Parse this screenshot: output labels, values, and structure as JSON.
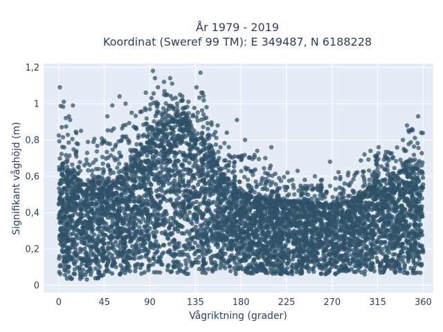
{
  "chart_data": {
    "type": "scatter",
    "title": "År 1979 - 2019",
    "subtitle": "Koordinat (Sweref 99 TM): E 349487, N 6188228",
    "xlabel": "Vågriktning (grader)",
    "ylabel": "Signifikant våghöjd (m)",
    "xlim": [
      -15,
      370
    ],
    "ylim": [
      -0.04,
      1.22
    ],
    "xticks": [
      0,
      45,
      90,
      135,
      180,
      225,
      270,
      315,
      360
    ],
    "xtick_labels": [
      "0",
      "45",
      "90",
      "135",
      "180",
      "225",
      "270",
      "315",
      "360"
    ],
    "yticks": [
      0,
      0.2,
      0.4,
      0.6,
      0.8,
      1.0,
      1.2
    ],
    "ytick_labels": [
      "0",
      "0,2",
      "0,4",
      "0,6",
      "0,8",
      "1",
      "1,2"
    ],
    "grid": true,
    "series": [
      {
        "color": "#2f5168",
        "envelope": {
          "direction": [
            0,
            10,
            20,
            30,
            45,
            60,
            75,
            90,
            100,
            110,
            120,
            130,
            140,
            150,
            160,
            170,
            180,
            195,
            210,
            225,
            240,
            255,
            270,
            285,
            300,
            315,
            330,
            340,
            350,
            360
          ],
          "lower": [
            0.04,
            0.03,
            0.03,
            0.03,
            0.04,
            0.05,
            0.06,
            0.06,
            0.06,
            0.06,
            0.06,
            0.06,
            0.06,
            0.06,
            0.06,
            0.06,
            0.06,
            0.06,
            0.06,
            0.06,
            0.06,
            0.06,
            0.06,
            0.06,
            0.06,
            0.06,
            0.06,
            0.06,
            0.06,
            0.06
          ],
          "dense_upper": [
            0.65,
            0.62,
            0.58,
            0.56,
            0.56,
            0.6,
            0.68,
            0.8,
            0.87,
            0.9,
            0.9,
            0.87,
            0.82,
            0.72,
            0.62,
            0.56,
            0.5,
            0.48,
            0.47,
            0.46,
            0.45,
            0.45,
            0.44,
            0.45,
            0.5,
            0.56,
            0.6,
            0.63,
            0.65,
            0.62
          ],
          "outlier_upper": [
            1.09,
            1.0,
            0.9,
            0.84,
            0.9,
            0.95,
            0.97,
            1.08,
            1.18,
            1.1,
            1.08,
            1.0,
            1.17,
            0.95,
            0.86,
            0.8,
            0.78,
            0.76,
            0.7,
            0.63,
            0.6,
            0.58,
            0.68,
            0.63,
            0.74,
            0.78,
            0.77,
            0.87,
            0.93,
            0.88
          ]
        },
        "outliers": [
          {
            "x": 1,
            "y": 1.09
          },
          {
            "x": 5,
            "y": 1.01
          },
          {
            "x": 14,
            "y": 0.99
          },
          {
            "x": 10,
            "y": 0.93
          },
          {
            "x": 3,
            "y": 0.87
          },
          {
            "x": 22,
            "y": 0.85
          },
          {
            "x": 48,
            "y": 0.93
          },
          {
            "x": 53,
            "y": 0.99
          },
          {
            "x": 60,
            "y": 1.04
          },
          {
            "x": 66,
            "y": 1.0
          },
          {
            "x": 72,
            "y": 0.95
          },
          {
            "x": 86,
            "y": 1.06
          },
          {
            "x": 90,
            "y": 0.97
          },
          {
            "x": 93,
            "y": 1.18
          },
          {
            "x": 95,
            "y": 1.14
          },
          {
            "x": 98,
            "y": 1.09
          },
          {
            "x": 104,
            "y": 1.12
          },
          {
            "x": 107,
            "y": 1.05
          },
          {
            "x": 110,
            "y": 1.14
          },
          {
            "x": 112,
            "y": 1.11
          },
          {
            "x": 117,
            "y": 1.0
          },
          {
            "x": 122,
            "y": 1.04
          },
          {
            "x": 128,
            "y": 1.01
          },
          {
            "x": 136,
            "y": 1.09
          },
          {
            "x": 140,
            "y": 1.17
          },
          {
            "x": 142,
            "y": 1.06
          },
          {
            "x": 146,
            "y": 0.98
          },
          {
            "x": 157,
            "y": 0.88
          },
          {
            "x": 166,
            "y": 0.84
          },
          {
            "x": 176,
            "y": 0.91
          },
          {
            "x": 184,
            "y": 0.8
          },
          {
            "x": 196,
            "y": 0.74
          },
          {
            "x": 204,
            "y": 0.7
          },
          {
            "x": 210,
            "y": 0.76
          },
          {
            "x": 226,
            "y": 0.62
          },
          {
            "x": 236,
            "y": 0.63
          },
          {
            "x": 243,
            "y": 0.58
          },
          {
            "x": 253,
            "y": 0.6
          },
          {
            "x": 268,
            "y": 0.68
          },
          {
            "x": 286,
            "y": 0.62
          },
          {
            "x": 302,
            "y": 0.72
          },
          {
            "x": 308,
            "y": 0.74
          },
          {
            "x": 316,
            "y": 0.76
          },
          {
            "x": 325,
            "y": 0.7
          },
          {
            "x": 340,
            "y": 0.8
          },
          {
            "x": 344,
            "y": 0.88
          },
          {
            "x": 349,
            "y": 0.86
          },
          {
            "x": 355,
            "y": 0.93
          },
          {
            "x": 358,
            "y": 0.84
          }
        ]
      }
    ]
  }
}
